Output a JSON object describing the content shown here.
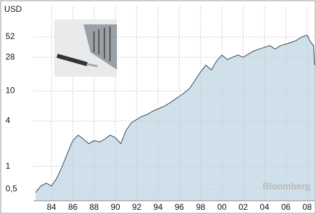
{
  "chart_data": {
    "type": "area",
    "y_axis_label": "USD",
    "watermark": "Bloomberg",
    "log_scale": true,
    "grid": true,
    "line_color": "#3a4550",
    "fill_color": "#cfe0ea",
    "x": [
      1982.5,
      1983,
      1983.5,
      1984,
      1984.5,
      1985,
      1985.5,
      1986,
      1986.5,
      1987,
      1987.5,
      1988,
      1988.5,
      1989,
      1989.5,
      1990,
      1990.5,
      1991,
      1991.5,
      1992,
      1992.5,
      1993,
      1993.5,
      1994,
      1994.5,
      1995,
      1995.5,
      1996,
      1996.5,
      1997,
      1997.5,
      1998,
      1998.5,
      1999,
      1999.5,
      2000,
      2000.5,
      2001,
      2001.5,
      2002,
      2002.5,
      2003,
      2003.5,
      2004,
      2004.5,
      2005,
      2005.5,
      2006,
      2006.5,
      2007,
      2007.5,
      2008,
      2008.3,
      2008.6,
      2008.7
    ],
    "values": [
      0.45,
      0.55,
      0.6,
      0.55,
      0.7,
      1.0,
      1.5,
      2.2,
      2.6,
      2.3,
      2.0,
      2.2,
      2.1,
      2.3,
      2.6,
      2.4,
      2.0,
      3.0,
      3.8,
      4.2,
      4.6,
      4.9,
      5.4,
      5.8,
      6.2,
      6.8,
      7.6,
      8.5,
      9.5,
      11,
      14,
      18,
      22,
      19,
      25,
      30,
      26,
      28,
      30,
      28,
      31,
      34,
      36,
      38,
      40,
      36,
      40,
      42,
      44,
      47,
      52,
      55,
      45,
      40,
      22
    ],
    "xlim": [
      1982.3,
      2008.7
    ],
    "xticks": [
      {
        "value": 1984,
        "label": "84"
      },
      {
        "value": 1986,
        "label": "86"
      },
      {
        "value": 1988,
        "label": "88"
      },
      {
        "value": 1990,
        "label": "90"
      },
      {
        "value": 1992,
        "label": "92"
      },
      {
        "value": 1994,
        "label": "94"
      },
      {
        "value": 1996,
        "label": "96"
      },
      {
        "value": 1998,
        "label": "98"
      },
      {
        "value": 2000,
        "label": "00"
      },
      {
        "value": 2002,
        "label": "02"
      },
      {
        "value": 2004,
        "label": "04"
      },
      {
        "value": 2006,
        "label": "06"
      },
      {
        "value": 2008,
        "label": "08"
      }
    ],
    "ylim": [
      0.35,
      130
    ],
    "yticks": [
      {
        "value": 0.5,
        "label": "0,5"
      },
      1,
      4,
      10,
      28,
      52
    ]
  }
}
